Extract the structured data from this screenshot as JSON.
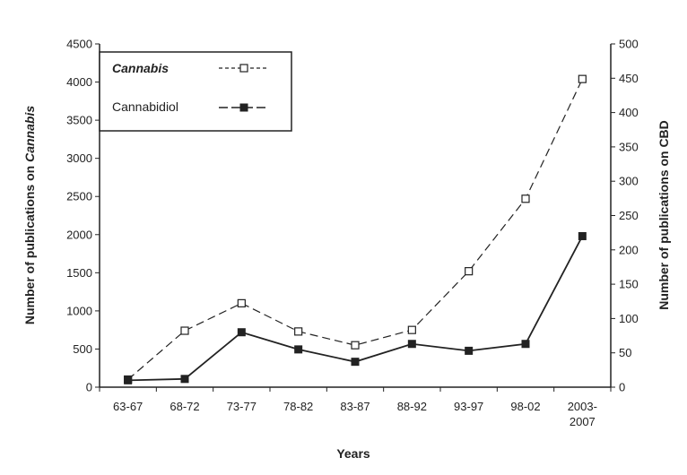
{
  "chart_data": {
    "type": "line",
    "categories": [
      "63-67",
      "68-72",
      "73-77",
      "78-82",
      "83-87",
      "88-92",
      "93-97",
      "98-02",
      "2003-2007"
    ],
    "category_lines": [
      [
        "63-67"
      ],
      [
        "68-72"
      ],
      [
        "73-77"
      ],
      [
        "78-82"
      ],
      [
        "83-87"
      ],
      [
        "88-92"
      ],
      [
        "93-97"
      ],
      [
        "98-02"
      ],
      [
        "2003-",
        "2007"
      ]
    ],
    "xlabel": "Years",
    "ylabel_left": [
      "Number of publications on ",
      "Cannabis"
    ],
    "ylabel_right": "Number of publications on CBD",
    "ylim_left": [
      0,
      4500
    ],
    "ylim_right": [
      0,
      500
    ],
    "yticks_left": [
      0,
      500,
      1000,
      1500,
      2000,
      2500,
      3000,
      3500,
      4000,
      4500
    ],
    "yticks_right": [
      0,
      50,
      100,
      150,
      200,
      250,
      300,
      350,
      400,
      450,
      500
    ],
    "grid": false,
    "legend_position": "top-left",
    "series": [
      {
        "name": "Cannabis",
        "axis": "left",
        "style": "dashed-open-square",
        "values": [
          100,
          740,
          1100,
          730,
          550,
          750,
          1520,
          2470,
          4040
        ]
      },
      {
        "name": "Cannabidiol",
        "axis": "right",
        "style": "long-dash-filled-square",
        "values": [
          10,
          12,
          80,
          55,
          37,
          63,
          53,
          63,
          220
        ]
      }
    ],
    "colors": {
      "line": "#222222",
      "background": "#ffffff"
    }
  }
}
